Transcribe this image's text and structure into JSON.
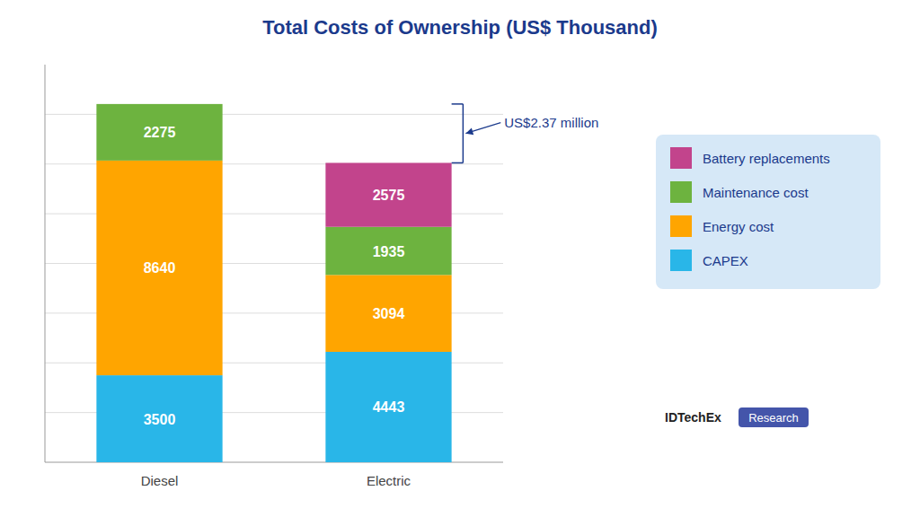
{
  "chart_data": {
    "type": "bar",
    "stacked": true,
    "title": "Total Costs of Ownership (US$ Thousand)",
    "categories": [
      "Diesel",
      "Electric"
    ],
    "series": [
      {
        "name": "CAPEX",
        "color": "#29B6E8",
        "values": [
          3500,
          4443
        ]
      },
      {
        "name": "Energy cost",
        "color": "#FFA500",
        "values": [
          8640,
          3094
        ]
      },
      {
        "name": "Maintenance cost",
        "color": "#6DB33F",
        "values": [
          2275,
          1935
        ]
      },
      {
        "name": "Battery replacements",
        "color": "#C2448C",
        "values": [
          0,
          2575
        ]
      }
    ],
    "ylim": [
      0,
      16000
    ],
    "yticks": [
      2000,
      4000,
      6000,
      8000,
      10000,
      12000,
      14000
    ],
    "grid": true,
    "tick_labels": "x",
    "data_labels": true,
    "legend": "right",
    "annotations": [
      "US$2.37 million"
    ],
    "source": [
      "IDTechEx",
      "Research"
    ]
  }
}
